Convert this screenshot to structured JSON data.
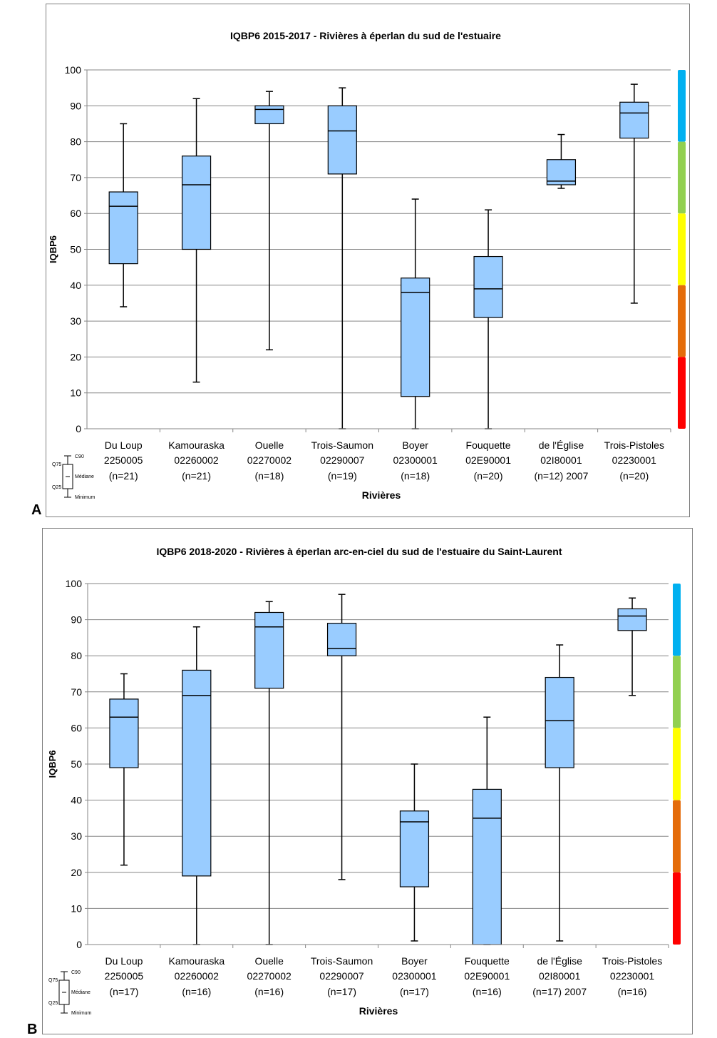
{
  "chart_data": [
    {
      "type": "box",
      "panel_label": "A",
      "title": "IQBP6 2015-2017 - Rivières à éperlan du sud de l'estuaire",
      "xlabel": "Rivières",
      "ylabel": "IQBP6",
      "ylim": [
        0,
        100
      ],
      "yticks": [
        0,
        10,
        20,
        30,
        40,
        50,
        60,
        70,
        80,
        90,
        100
      ],
      "grid": true,
      "categories": [
        {
          "name": "Du Loup",
          "code": "2250005",
          "n": "(n=21)"
        },
        {
          "name": "Kamouraska",
          "code": "02260002",
          "n": "(n=21)"
        },
        {
          "name": "Ouelle",
          "code": "02270002",
          "n": "(n=18)"
        },
        {
          "name": "Trois-Saumon",
          "code": "02290007",
          "n": "(n=19)"
        },
        {
          "name": "Boyer",
          "code": "02300001",
          "n": "(n=18)"
        },
        {
          "name": "Fouquette",
          "code": "02E90001",
          "n": "(n=20)"
        },
        {
          "name": "de l'Église",
          "code": "02I80001",
          "n": "(n=12) 2007"
        },
        {
          "name": "Trois-Pistoles",
          "code": "02230001",
          "n": "(n=20)"
        }
      ],
      "boxes": [
        {
          "min": 34,
          "q25": 46,
          "median": 62,
          "q75": 66,
          "c90": 85
        },
        {
          "min": 13,
          "q25": 50,
          "median": 68,
          "q75": 76,
          "c90": 92
        },
        {
          "min": 22,
          "q25": 85,
          "median": 89,
          "q75": 90,
          "c90": 94
        },
        {
          "min": 0,
          "q25": 71,
          "median": 83,
          "q75": 90,
          "c90": 95
        },
        {
          "min": 0,
          "q25": 9,
          "median": 38,
          "q75": 42,
          "c90": 64
        },
        {
          "min": 0,
          "q25": 31,
          "median": 39,
          "q75": 48,
          "c90": 61
        },
        {
          "min": 67,
          "q25": 68,
          "median": 69,
          "q75": 75,
          "c90": 82
        },
        {
          "min": 35,
          "q25": 81,
          "median": 88,
          "q75": 91,
          "c90": 96
        }
      ]
    },
    {
      "type": "box",
      "panel_label": "B",
      "title": "IQBP6 2018-2020 - Rivières à éperlan arc-en-ciel du sud de l'estuaire du Saint-Laurent",
      "xlabel": "Rivières",
      "ylabel": "IQBP6",
      "ylim": [
        0,
        100
      ],
      "yticks": [
        0,
        10,
        20,
        30,
        40,
        50,
        60,
        70,
        80,
        90,
        100
      ],
      "grid": true,
      "categories": [
        {
          "name": "Du Loup",
          "code": "2250005",
          "n": "(n=17)"
        },
        {
          "name": "Kamouraska",
          "code": "02260002",
          "n": "(n=16)"
        },
        {
          "name": "Ouelle",
          "code": "02270002",
          "n": "(n=16)"
        },
        {
          "name": "Trois-Saumon",
          "code": "02290007",
          "n": "(n=17)"
        },
        {
          "name": "Boyer",
          "code": "02300001",
          "n": "(n=17)"
        },
        {
          "name": "Fouquette",
          "code": "02E90001",
          "n": "(n=16)"
        },
        {
          "name": "de l'Église",
          "code": "02I80001",
          "n": "(n=17) 2007"
        },
        {
          "name": "Trois-Pistoles",
          "code": "02230001",
          "n": "(n=16)"
        }
      ],
      "boxes": [
        {
          "min": 22,
          "q25": 49,
          "median": 63,
          "q75": 68,
          "c90": 75
        },
        {
          "min": 0,
          "q25": 19,
          "median": 69,
          "q75": 76,
          "c90": 88
        },
        {
          "min": 0,
          "q25": 71,
          "median": 88,
          "q75": 92,
          "c90": 95
        },
        {
          "min": 18,
          "q25": 80,
          "median": 82,
          "q75": 89,
          "c90": 97
        },
        {
          "min": 1,
          "q25": 16,
          "median": 34,
          "q75": 37,
          "c90": 50
        },
        {
          "min": 0,
          "q25": 0,
          "median": 35,
          "q75": 43,
          "c90": 63
        },
        {
          "min": 1,
          "q25": 49,
          "median": 62,
          "q75": 74,
          "c90": 83
        },
        {
          "min": 69,
          "q25": 87,
          "median": 91,
          "q75": 93,
          "c90": 96
        }
      ]
    }
  ],
  "quality_scale": [
    {
      "from": 80,
      "to": 100,
      "color": "#00b0f0"
    },
    {
      "from": 60,
      "to": 80,
      "color": "#92d050"
    },
    {
      "from": 40,
      "to": 60,
      "color": "#ffff00"
    },
    {
      "from": 20,
      "to": 40,
      "color": "#e46c0a"
    },
    {
      "from": 0,
      "to": 20,
      "color": "#ff0000"
    }
  ],
  "legend_key": {
    "c90": "C90",
    "q75": "Q75",
    "median": "Médiane",
    "q25": "Q25",
    "minimum": "Minimum"
  },
  "colors": {
    "box_fill": "#99ccff",
    "box_stroke": "#000000",
    "grid": "#868686"
  }
}
